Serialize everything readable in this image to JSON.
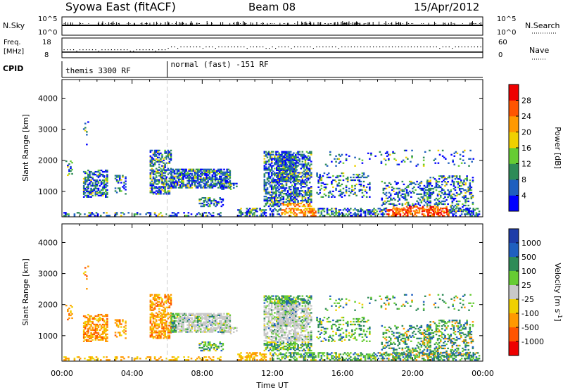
{
  "header": {
    "station": "Syowa East (fitACF)",
    "beam": "Beam 08",
    "date": "15/Apr/2012"
  },
  "top_panels": {
    "nsky": {
      "label": "N.Sky",
      "tick_top": "10^5",
      "tick_bottom": "10^0",
      "right_tick_top": "10^5",
      "right_tick_bottom": "10^0",
      "legend": "N.Search"
    },
    "freq": {
      "label_line1": "Freq.",
      "label_line2": "[MHz]",
      "tick_top": "18",
      "tick_bottom": "8",
      "right_tick_top": "60",
      "right_tick_bottom": "0",
      "legend": "Nave"
    },
    "cpid": {
      "label": "CPID",
      "modes": [
        {
          "name": "themis 3300 RF",
          "start_hour": 0
        },
        {
          "name": "normal (fast) -151 RF",
          "start_hour": 6
        }
      ]
    }
  },
  "x_axis": {
    "title": "Time UT",
    "ticks": [
      "00:00",
      "04:00",
      "08:00",
      "12:00",
      "16:00",
      "20:00",
      "00:00"
    ],
    "range_hours": [
      0,
      24
    ]
  },
  "chart_data": [
    {
      "type": "heatmap",
      "name": "power",
      "ylabel": "Slant Range [km]",
      "yticks": [
        1000,
        2000,
        3000,
        4000
      ],
      "ylim": [
        180,
        4600
      ],
      "colorbar": {
        "label": "Power [dB]",
        "ticks": [
          "4",
          "8",
          "12",
          "16",
          "20",
          "24",
          "28"
        ],
        "colors": [
          "#0000ff",
          "#1f5fbf",
          "#2e8b57",
          "#66cc33",
          "#f0d000",
          "#ff9900",
          "#ff5500",
          "#ee0000"
        ]
      }
    },
    {
      "type": "heatmap",
      "name": "velocity",
      "ylabel": "Slant Range [km]",
      "yticks": [
        1000,
        2000,
        3000,
        4000
      ],
      "ylim": [
        180,
        4600
      ],
      "colorbar": {
        "label": "Velocity [m s^-1]",
        "ticks": [
          "1000",
          "500",
          "100",
          "25",
          "-25",
          "-100",
          "-500",
          "-1000"
        ],
        "colors": [
          "#1e3ca8",
          "#1f5fbf",
          "#2e8b57",
          "#66cc33",
          "#c8c8c8",
          "#f0d000",
          "#ff9900",
          "#ff5500",
          "#ee0000"
        ]
      }
    }
  ]
}
